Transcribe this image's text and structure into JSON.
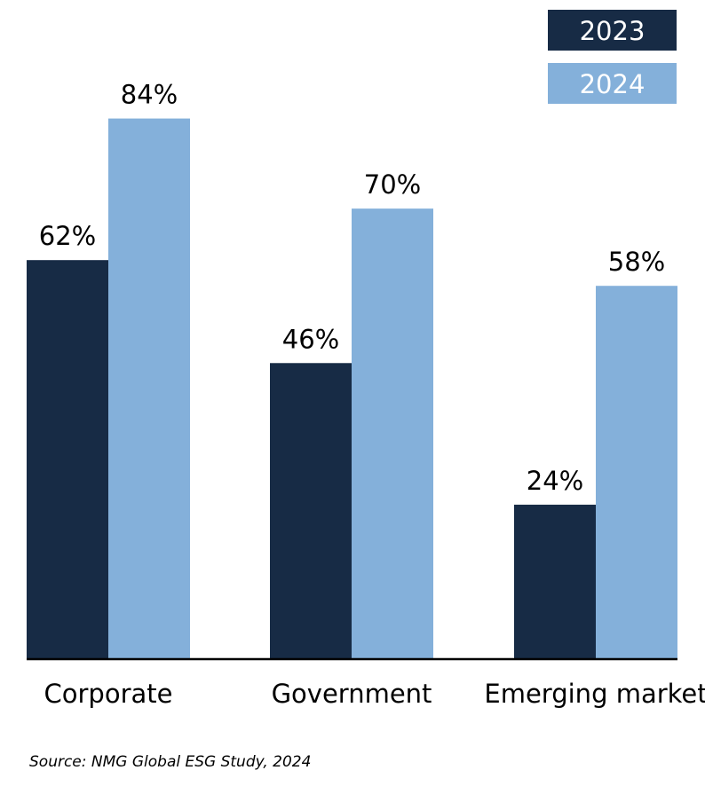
{
  "chart_data": {
    "type": "bar",
    "categories": [
      "Corporate",
      "Government",
      "Emerging market"
    ],
    "series": [
      {
        "name": "2023",
        "values": [
          62,
          46,
          24
        ],
        "color": "#172b45"
      },
      {
        "name": "2024",
        "values": [
          84,
          70,
          58
        ],
        "color": "#84b0da"
      }
    ],
    "value_suffix": "%",
    "ylim": [
      0,
      100
    ],
    "grid": false,
    "legend_position": "top-right"
  },
  "source": "Source: NMG Global ESG Study, 2024"
}
